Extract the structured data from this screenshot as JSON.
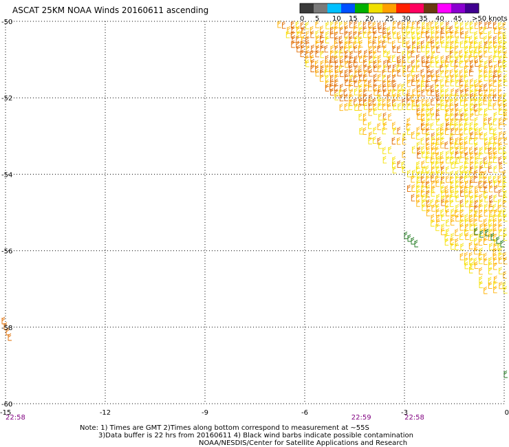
{
  "title": "ASCAT 25KM NOAA Winds 20160611 ascending",
  "scale": {
    "labels": [
      "0",
      "5",
      "10",
      "15",
      "20",
      "25",
      "30",
      "35",
      "40",
      "45",
      ">50 knots"
    ],
    "colors": [
      "#3a3a3a",
      "#7a7a7a",
      "#00c0ff",
      "#0050ff",
      "#00b000",
      "#f0e000",
      "#ffa000",
      "#ff2000",
      "#ff0060",
      "#6a3a10",
      "#ff00ff",
      "#8a00d0",
      "#400090"
    ]
  },
  "notes": {
    "line1": "Note: 1) Times are GMT 2)Times along bottom correspond to measurement at ~55S",
    "line2": "3)Data buffer is 22 hrs from 20160611 4) Black wind barbs indicate possible contamination",
    "line3": "NOAA/NESDIS/Center for Satellite Applications and Research"
  },
  "chart_data": {
    "type": "map",
    "lon_range": [
      -15,
      0
    ],
    "lat_range": [
      -60,
      -50
    ],
    "x_ticks": [
      "-15",
      "-12",
      "-9",
      "-6",
      "-3",
      "0"
    ],
    "y_ticks": [
      "-50",
      "-52",
      "-54",
      "-56",
      "-58",
      "-60"
    ],
    "grid": true,
    "times": [
      {
        "label": "22:58",
        "lon": -15
      },
      {
        "label": "22:59",
        "lon": -4.3
      },
      {
        "label": "22:58",
        "lon": -2.7
      }
    ],
    "wind_colors": {
      "orange": "#e06c00",
      "amber": "#ffb000",
      "yellow": "#f6e000",
      "green": "#207a20"
    }
  }
}
